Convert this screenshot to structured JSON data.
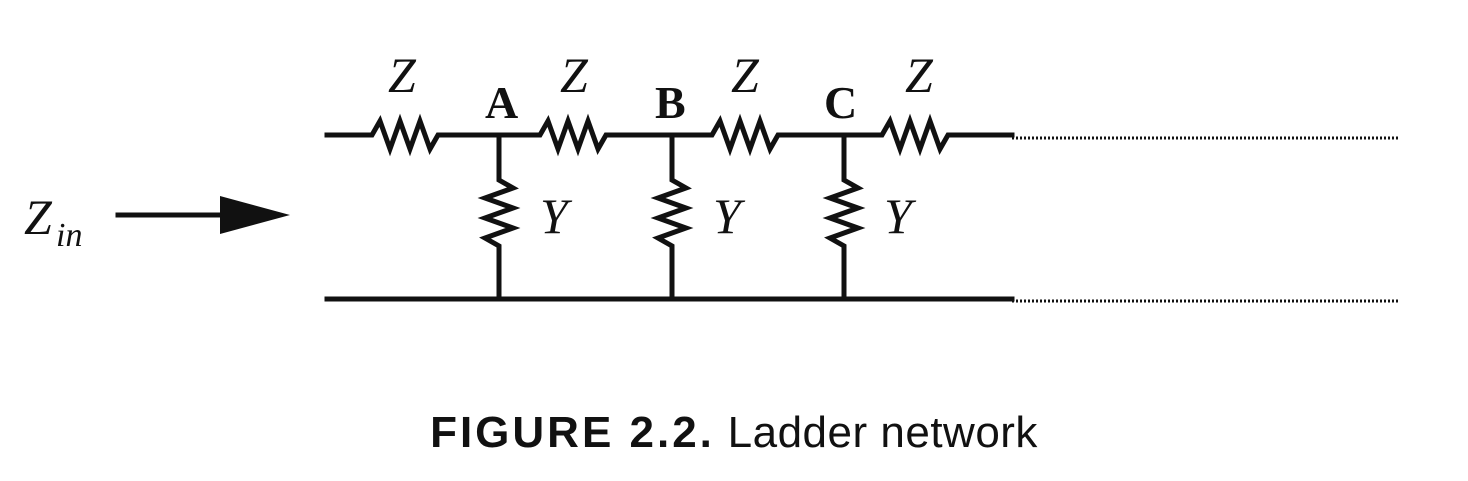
{
  "diagram": {
    "input_label_main": "Z",
    "input_label_sub": "in",
    "series_labels": [
      "Z",
      "Z",
      "Z",
      "Z"
    ],
    "node_labels": [
      "A",
      "B",
      "C"
    ],
    "shunt_labels": [
      "Y",
      "Y",
      "Y"
    ]
  },
  "caption": {
    "figure_number": "FIGURE 2.2.",
    "text": "Ladder network"
  }
}
